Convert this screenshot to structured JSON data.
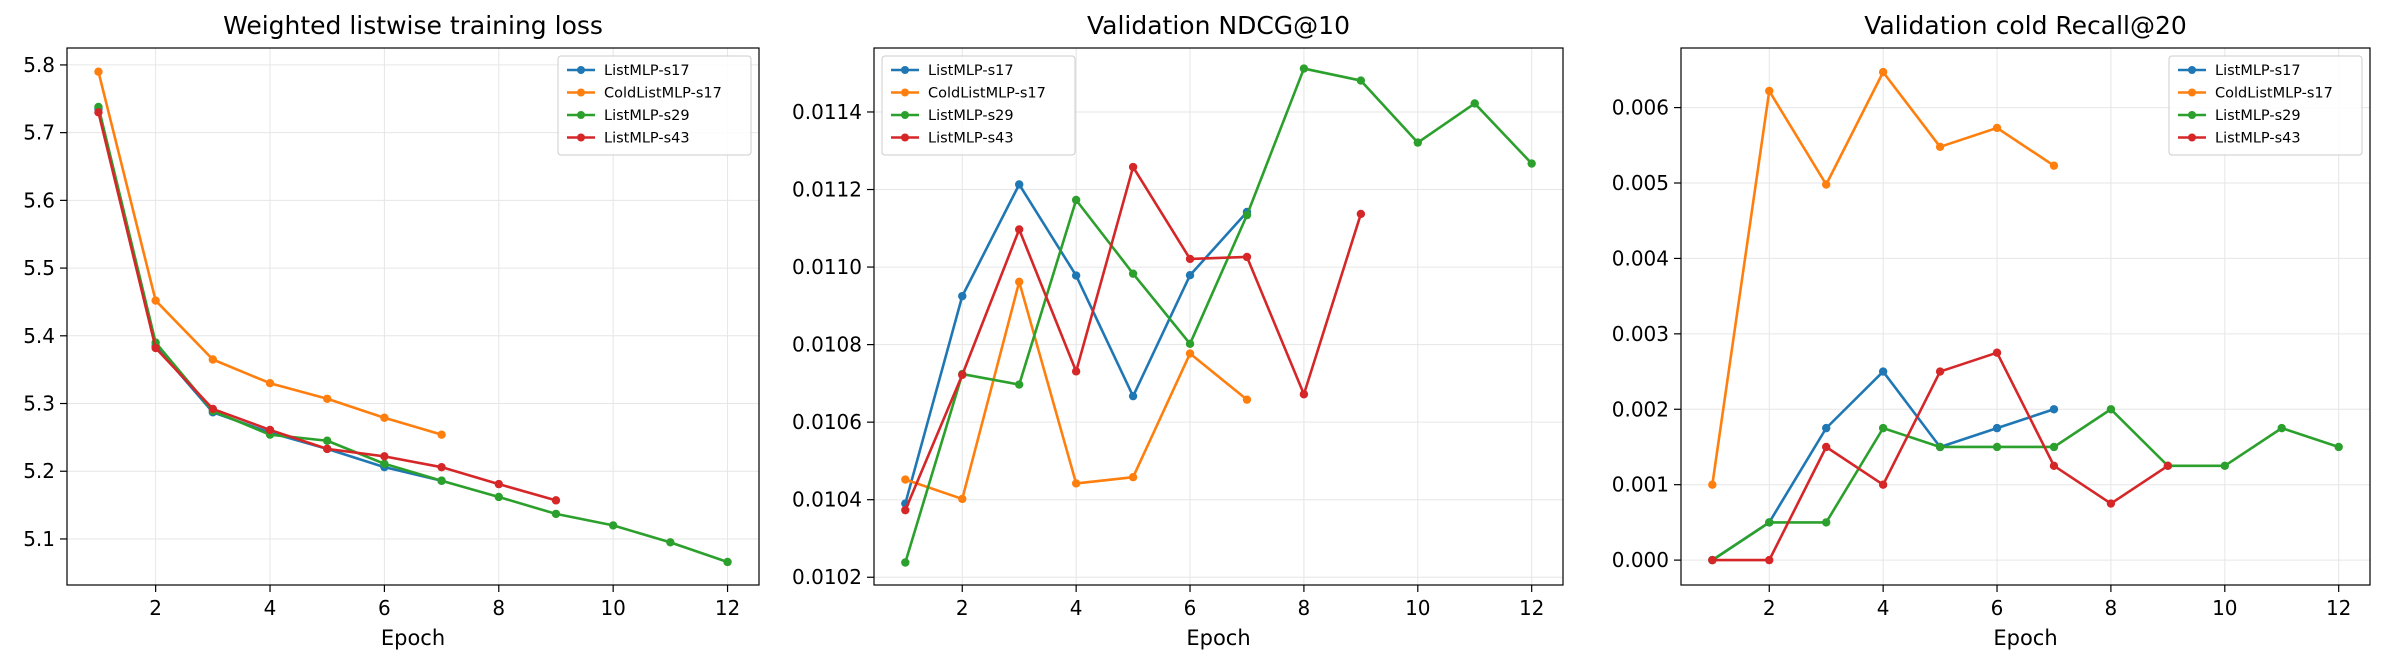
{
  "chart_data": [
    {
      "type": "line",
      "title": "Weighted listwise training loss",
      "xlabel": "Epoch",
      "ylabel": "",
      "xlim": [
        0.45,
        12.55
      ],
      "ylim": [
        5.032,
        5.825
      ],
      "xticks": [
        "2",
        "4",
        "6",
        "8",
        "10",
        "12"
      ],
      "yticks": [
        "5.1",
        "5.2",
        "5.3",
        "5.4",
        "5.5",
        "5.6",
        "5.7",
        "5.8"
      ],
      "grid": true,
      "legend": "top-right",
      "series": [
        {
          "name": "ListMLP-s17",
          "color": "#1f77b4",
          "x": [
            1,
            2,
            3,
            4,
            5,
            6,
            7
          ],
          "y": [
            5.735,
            5.385,
            5.287,
            5.257,
            5.233,
            5.206,
            5.186
          ]
        },
        {
          "name": "ColdListMLP-s17",
          "color": "#ff7f0e",
          "x": [
            1,
            2,
            3,
            4,
            5,
            6,
            7
          ],
          "y": [
            5.79,
            5.452,
            5.365,
            5.33,
            5.307,
            5.279,
            5.254
          ]
        },
        {
          "name": "ListMLP-s29",
          "color": "#2ca02c",
          "x": [
            1,
            2,
            3,
            4,
            5,
            6,
            7,
            8,
            9,
            10,
            11,
            12
          ],
          "y": [
            5.738,
            5.39,
            5.289,
            5.254,
            5.245,
            5.211,
            5.186,
            5.162,
            5.137,
            5.12,
            5.095,
            5.066
          ]
        },
        {
          "name": "ListMLP-s43",
          "color": "#d62728",
          "x": [
            1,
            2,
            3,
            4,
            5,
            6,
            7,
            8,
            9
          ],
          "y": [
            5.73,
            5.382,
            5.292,
            5.261,
            5.233,
            5.222,
            5.206,
            5.181,
            5.157
          ]
        }
      ]
    },
    {
      "type": "line",
      "title": "Validation NDCG@10",
      "xlabel": "Epoch",
      "ylabel": "",
      "xlim": [
        0.45,
        12.55
      ],
      "ylim": [
        0.01018,
        0.011565
      ],
      "xticks": [
        "2",
        "4",
        "6",
        "8",
        "10",
        "12"
      ],
      "yticks": [
        "0.0102",
        "0.0104",
        "0.0106",
        "0.0108",
        "0.0110",
        "0.0112",
        "0.0114"
      ],
      "grid": true,
      "legend": "top-left",
      "series": [
        {
          "name": "ListMLP-s17",
          "color": "#1f77b4",
          "x": [
            1,
            2,
            3,
            4,
            5,
            6,
            7
          ],
          "y": [
            0.01039,
            0.010925,
            0.011213,
            0.010978,
            0.010667,
            0.010979,
            0.011142
          ]
        },
        {
          "name": "ColdListMLP-s17",
          "color": "#ff7f0e",
          "x": [
            1,
            2,
            3,
            4,
            5,
            6,
            7
          ],
          "y": [
            0.010452,
            0.010402,
            0.010962,
            0.010442,
            0.010458,
            0.010777,
            0.010658
          ]
        },
        {
          "name": "ListMLP-s29",
          "color": "#2ca02c",
          "x": [
            1,
            2,
            3,
            4,
            5,
            6,
            7,
            8,
            9,
            10,
            11,
            12
          ],
          "y": [
            0.010238,
            0.010724,
            0.010697,
            0.011173,
            0.010983,
            0.010802,
            0.011134,
            0.011512,
            0.011481,
            0.011321,
            0.011422,
            0.011267
          ]
        },
        {
          "name": "ListMLP-s43",
          "color": "#d62728",
          "x": [
            1,
            2,
            3,
            4,
            5,
            6,
            7,
            8,
            9
          ],
          "y": [
            0.010373,
            0.010722,
            0.011097,
            0.010731,
            0.011258,
            0.011021,
            0.011026,
            0.010672,
            0.011137
          ]
        }
      ]
    },
    {
      "type": "line",
      "title": "Validation cold Recall@20",
      "xlabel": "Epoch",
      "ylabel": "",
      "xlim": [
        0.45,
        12.55
      ],
      "ylim": [
        -0.00033,
        0.00679
      ],
      "xticks": [
        "2",
        "4",
        "6",
        "8",
        "10",
        "12"
      ],
      "yticks": [
        "0.000",
        "0.001",
        "0.002",
        "0.003",
        "0.004",
        "0.005",
        "0.006"
      ],
      "grid": true,
      "legend": "top-right",
      "series": [
        {
          "name": "ListMLP-s17",
          "color": "#1f77b4",
          "x": [
            1,
            2,
            3,
            4,
            5,
            6,
            7
          ],
          "y": [
            0.0,
            0.0005,
            0.00175,
            0.0025,
            0.0015,
            0.00175,
            0.002
          ]
        },
        {
          "name": "ColdListMLP-s17",
          "color": "#ff7f0e",
          "x": [
            1,
            2,
            3,
            4,
            5,
            6,
            7
          ],
          "y": [
            0.001,
            0.00622,
            0.00498,
            0.00647,
            0.00548,
            0.00573,
            0.00523
          ]
        },
        {
          "name": "ListMLP-s29",
          "color": "#2ca02c",
          "x": [
            1,
            2,
            3,
            4,
            5,
            6,
            7,
            8,
            9,
            10,
            11,
            12
          ],
          "y": [
            0.0,
            0.0005,
            0.0005,
            0.00175,
            0.0015,
            0.0015,
            0.0015,
            0.002,
            0.00125,
            0.00125,
            0.00175,
            0.0015
          ]
        },
        {
          "name": "ListMLP-s43",
          "color": "#d62728",
          "x": [
            1,
            2,
            3,
            4,
            5,
            6,
            7,
            8,
            9
          ],
          "y": [
            0.0,
            0.0,
            0.0015,
            0.001,
            0.0025,
            0.00275,
            0.00125,
            0.00075,
            0.00125
          ]
        }
      ]
    }
  ]
}
